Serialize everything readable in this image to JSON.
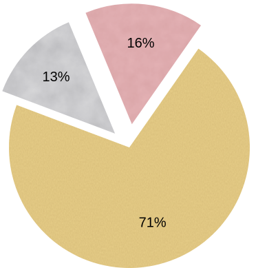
{
  "chart_data": {
    "type": "pie",
    "exploded": true,
    "slices": [
      {
        "label": "71%",
        "value": 71,
        "color": "#e8cf8a",
        "texture": "burlap"
      },
      {
        "label": "13%",
        "value": 13,
        "color": "#d6d6d8",
        "texture": "marble"
      },
      {
        "label": "16%",
        "value": 16,
        "color": "#e4b2b5",
        "texture": "parchment"
      }
    ],
    "start_angle_deg": 35,
    "direction": "clockwise",
    "legend": "none",
    "title": ""
  }
}
